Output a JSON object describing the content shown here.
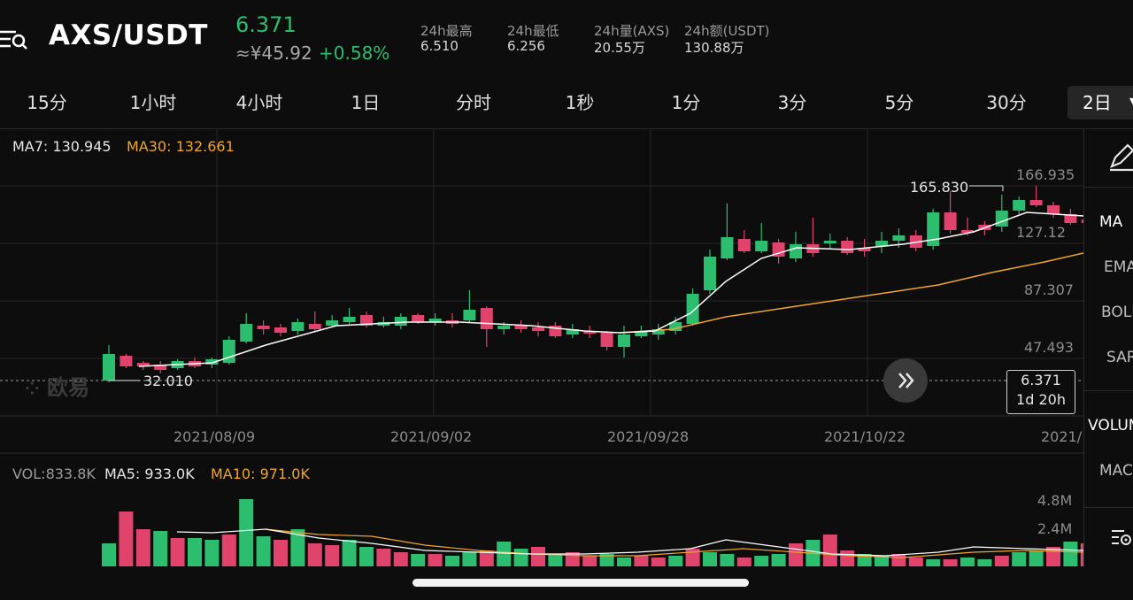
{
  "header": {
    "pair": "AXS/USDT",
    "price": "6.371",
    "cny_price": "≈¥45.92",
    "change": "+0.58%",
    "stats": [
      {
        "label": "24h最高",
        "value": "6.510"
      },
      {
        "label": "24h最低",
        "value": "6.256"
      },
      {
        "label": "24h量(AXS)",
        "value": "20.55万"
      },
      {
        "label": "24h额(USDT)",
        "value": "130.88万"
      }
    ]
  },
  "intervals": [
    "15分",
    "1小时",
    "4小时",
    "1日",
    "分时",
    "1秒",
    "1分",
    "3分",
    "5分",
    "30分"
  ],
  "active_interval": "2日",
  "main_chart": {
    "ma7_label": "MA7: 130.945",
    "ma30_label": "MA30: 132.661",
    "y_ticks": [
      "166.935",
      "127.12",
      "87.307",
      "47.493"
    ],
    "high_marker": "165.830",
    "low_marker": "32.010",
    "x_dates": [
      "2021/08/09",
      "2021/09/02",
      "2021/09/28",
      "2021/10/22",
      "2021/"
    ],
    "current_price": "6.371",
    "countdown": "1d 20h",
    "watermark": "欧易"
  },
  "volume_chart": {
    "vol_label": "VOL:833.8K",
    "ma5_label": "MA5: 933.0K",
    "ma10_label": "MA10: 971.0K",
    "y_ticks": [
      "4.8M",
      "2.4M"
    ]
  },
  "indicators": [
    "MA",
    "EMA",
    "BOLL",
    "SAR",
    "VOLUME",
    "MACD"
  ],
  "colors": {
    "up": "#2dbd6e",
    "down": "#e0436b",
    "ma7": "#ffffff",
    "ma30": "#f0a52e",
    "grid": "#262626"
  },
  "icons": [
    "menu-search-icon",
    "pencil-icon",
    "chevron-down-icon",
    "double-chevron-right-icon",
    "settings-icon"
  ]
}
